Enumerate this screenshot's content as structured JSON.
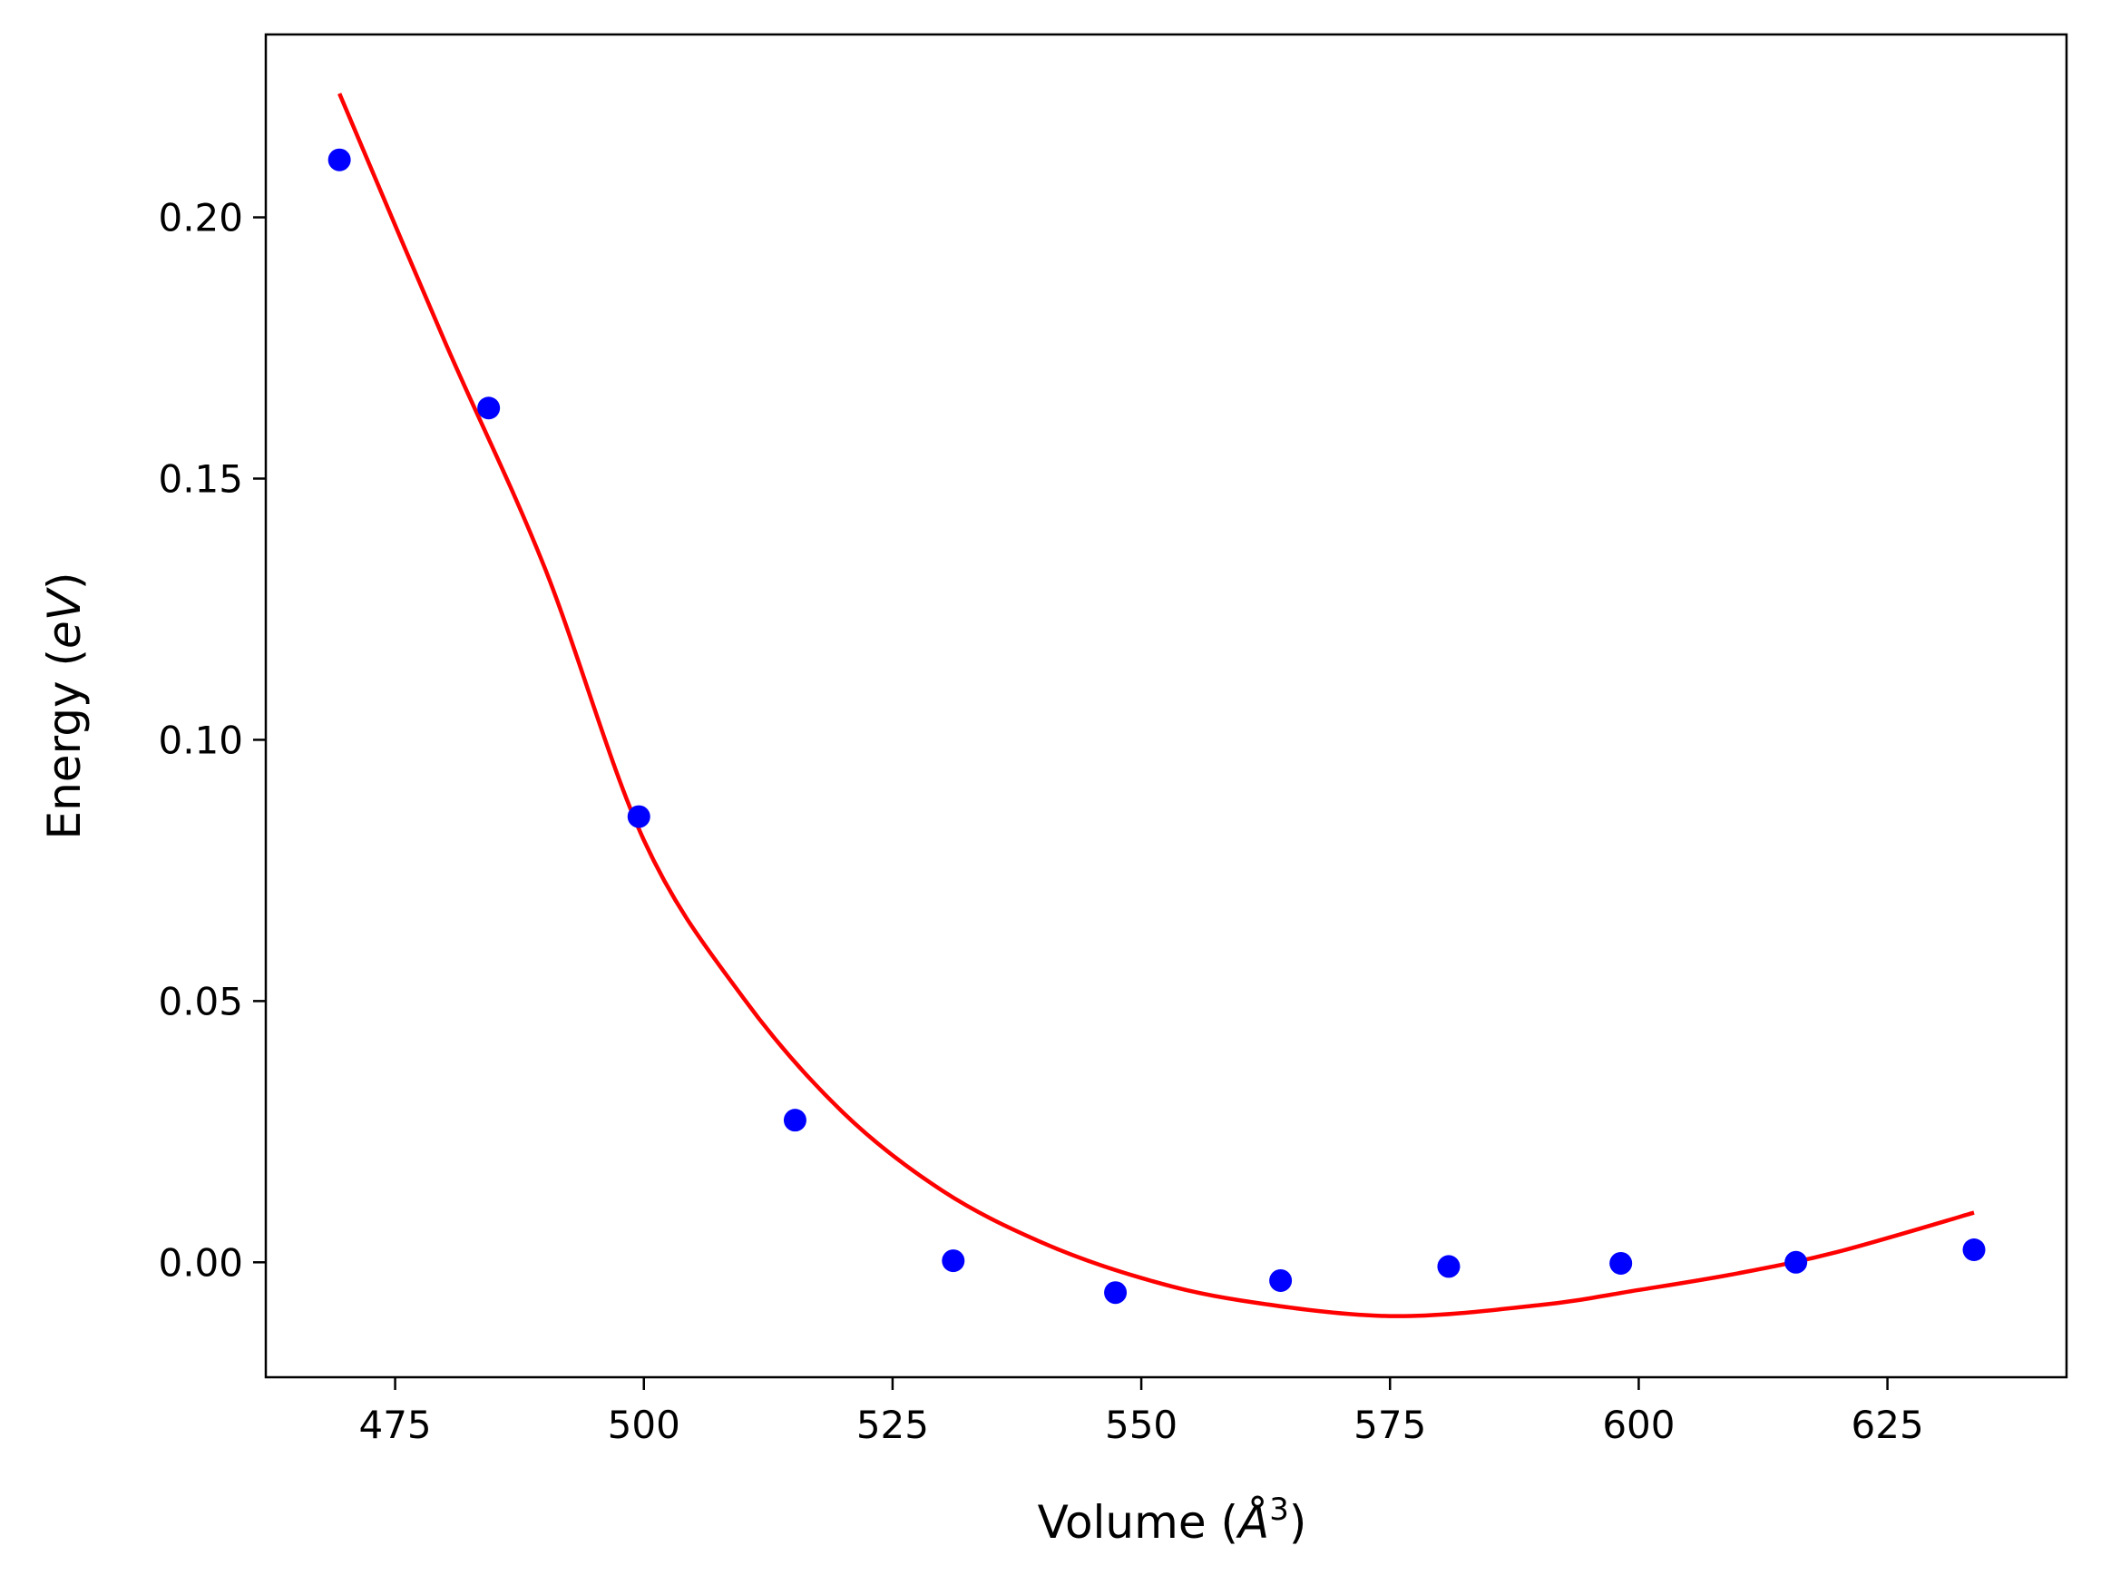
{
  "chart_data": {
    "type": "scatter",
    "xlabel": {
      "main": "Volume (",
      "symbol": "Å",
      "sup": "3",
      "close": ")"
    },
    "ylabel": {
      "main": "Energy (",
      "symbol": "eV",
      "close": ")"
    },
    "xlim": [
      462,
      643
    ],
    "ylim": [
      -0.022,
      0.235
    ],
    "x_ticks": [
      475,
      500,
      525,
      550,
      575,
      600,
      625
    ],
    "x_tick_labels": [
      "475",
      "500",
      "525",
      "550",
      "575",
      "600",
      "625"
    ],
    "y_ticks": [
      0.0,
      0.05,
      0.1,
      0.15,
      0.2
    ],
    "y_tick_labels": [
      "0.00",
      "0.05",
      "0.10",
      "0.15",
      "0.20"
    ],
    "grid": false,
    "series": [
      {
        "kind": "scatter",
        "color": "#0000ff",
        "points": [
          [
            469.4,
            0.211
          ],
          [
            484.4,
            0.1635
          ],
          [
            499.5,
            0.0853
          ],
          [
            515.2,
            0.0272
          ],
          [
            531.1,
            0.0003
          ],
          [
            547.4,
            -0.0058
          ],
          [
            564.0,
            -0.0035
          ],
          [
            580.9,
            -0.0008
          ],
          [
            598.2,
            -0.0002
          ],
          [
            615.8,
            0.0
          ],
          [
            633.7,
            0.0024
          ]
        ]
      },
      {
        "kind": "line",
        "color": "#ff0000",
        "points": [
          [
            469.4,
            0.2237
          ],
          [
            480,
            0.1762
          ],
          [
            490,
            0.1331
          ],
          [
            500,
            0.0808
          ],
          [
            510,
            0.0506
          ],
          [
            520,
            0.0287
          ],
          [
            530,
            0.0137
          ],
          [
            540,
            0.0038
          ],
          [
            550,
            -0.003
          ],
          [
            560,
            -0.0073
          ],
          [
            575,
            -0.0103
          ],
          [
            590,
            -0.0082
          ],
          [
            600,
            -0.0053
          ],
          [
            610,
            -0.0021
          ],
          [
            620,
            0.002
          ],
          [
            633.7,
            0.0095
          ]
        ]
      }
    ]
  }
}
